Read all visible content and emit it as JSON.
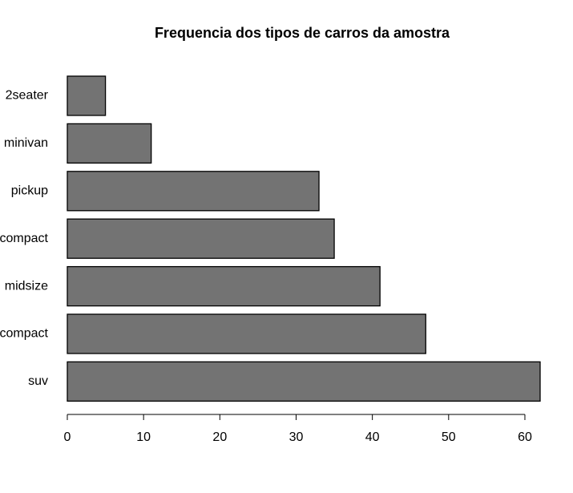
{
  "chart_data": {
    "type": "hbar",
    "title": "Frequencia dos tipos de carros da amostra",
    "categories": [
      "2seater",
      "minivan",
      "pickup",
      "subcompact",
      "midsize",
      "compact",
      "suv"
    ],
    "values": [
      5,
      11,
      33,
      35,
      41,
      47,
      62
    ],
    "color": "#737373",
    "xlim": [
      0,
      62
    ],
    "xticks": [
      0,
      10,
      20,
      30,
      40,
      50,
      60
    ]
  }
}
